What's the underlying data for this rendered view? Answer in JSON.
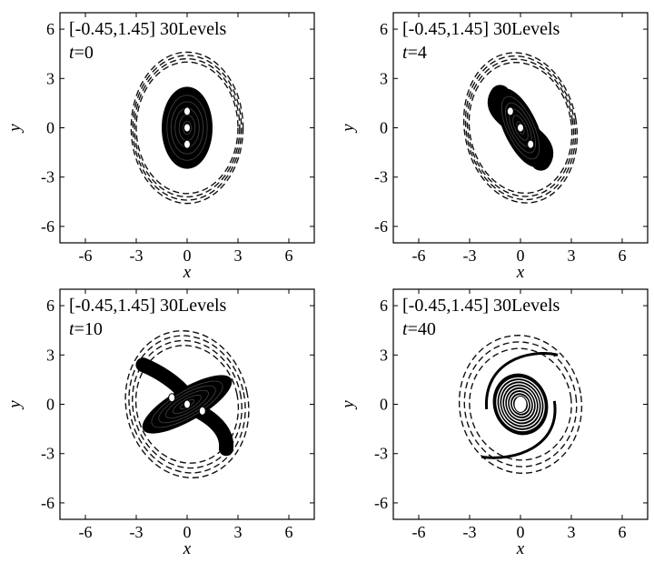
{
  "chart_data": [
    {
      "type": "contour",
      "title": "",
      "xlabel": "x",
      "ylabel": "y",
      "xlim": [
        -7.5,
        7.5
      ],
      "ylim": [
        -7,
        7
      ],
      "xticks": [
        -6,
        -3,
        0,
        3,
        6
      ],
      "yticks": [
        -6,
        -3,
        0,
        3,
        6
      ],
      "xtick_labels": [
        "-6",
        "-3",
        "0",
        "3",
        "6"
      ],
      "ytick_labels": [
        "-6",
        "-3",
        "0",
        "3",
        "6"
      ],
      "annotation_range": "[-0.45,1.45] 30Levels",
      "time_var": "t",
      "time_value": "=0",
      "t": 0,
      "contour_range": [
        -0.45,
        1.45
      ],
      "levels": 30,
      "dashed_rings": [
        [
          3.0,
          4.0
        ],
        [
          3.1,
          4.2
        ],
        [
          3.2,
          4.4
        ],
        [
          3.3,
          4.6
        ]
      ],
      "core": {
        "cx": 0,
        "cy": 0,
        "rx": 1.5,
        "ry": 2.5,
        "angle": 0
      },
      "core_centers": [
        [
          0,
          1.0
        ],
        [
          0,
          0
        ],
        [
          0,
          -1.0
        ]
      ],
      "arms": "none"
    },
    {
      "type": "contour",
      "title": "",
      "xlabel": "x",
      "ylabel": "y",
      "xlim": [
        -7.5,
        7.5
      ],
      "ylim": [
        -7,
        7
      ],
      "xticks": [
        -6,
        -3,
        0,
        3,
        6
      ],
      "yticks": [
        -6,
        -3,
        0,
        3,
        6
      ],
      "xtick_labels": [
        "-6",
        "-3",
        "0",
        "3",
        "6"
      ],
      "ytick_labels": [
        "-6",
        "-3",
        "0",
        "3",
        "6"
      ],
      "annotation_range": "[-0.45,1.45] 30Levels",
      "time_var": "t",
      "time_value": "=4",
      "t": 4,
      "contour_range": [
        -0.45,
        1.45
      ],
      "levels": 30,
      "dashed_rings": [
        [
          3.0,
          4.0
        ],
        [
          3.1,
          4.2
        ],
        [
          3.2,
          4.4
        ],
        [
          3.3,
          4.6
        ]
      ],
      "core": {
        "cx": 0,
        "cy": 0,
        "rx": 1.0,
        "ry": 2.6,
        "angle": -25
      },
      "core_centers": [
        [
          -0.6,
          1.0
        ],
        [
          0,
          0
        ],
        [
          0.6,
          -1.0
        ]
      ],
      "arms": "s-small"
    },
    {
      "type": "contour",
      "title": "",
      "xlabel": "x",
      "ylabel": "y",
      "xlim": [
        -7.5,
        7.5
      ],
      "ylim": [
        -7,
        7
      ],
      "xticks": [
        -6,
        -3,
        0,
        3,
        6
      ],
      "yticks": [
        -6,
        -3,
        0,
        3,
        6
      ],
      "xtick_labels": [
        "-6",
        "-3",
        "0",
        "3",
        "6"
      ],
      "ytick_labels": [
        "-6",
        "-3",
        "0",
        "3",
        "6"
      ],
      "annotation_range": "[-0.45,1.45] 30Levels",
      "time_var": "t",
      "time_value": "=10",
      "t": 10,
      "contour_range": [
        -0.45,
        1.45
      ],
      "levels": 30,
      "dashed_rings": [
        [
          3.0,
          3.6
        ],
        [
          3.2,
          3.9
        ],
        [
          3.4,
          4.2
        ],
        [
          3.6,
          4.5
        ]
      ],
      "core": {
        "cx": 0,
        "cy": 0,
        "rx": 3.0,
        "ry": 1.0,
        "angle": -30
      },
      "core_centers": [
        [
          -0.9,
          0.4
        ],
        [
          0,
          0
        ],
        [
          0.9,
          -0.4
        ]
      ],
      "arms": "s-large"
    },
    {
      "type": "contour",
      "title": "",
      "xlabel": "x",
      "ylabel": "y",
      "xlim": [
        -7.5,
        7.5
      ],
      "ylim": [
        -7,
        7
      ],
      "xticks": [
        -6,
        -3,
        0,
        3,
        6
      ],
      "yticks": [
        -6,
        -3,
        0,
        3,
        6
      ],
      "xtick_labels": [
        "-6",
        "-3",
        "0",
        "3",
        "6"
      ],
      "ytick_labels": [
        "-6",
        "-3",
        "0",
        "3",
        "6"
      ],
      "annotation_range": "[-0.45,1.45] 30Levels",
      "time_var": "t",
      "time_value": "=40",
      "t": 40,
      "contour_range": [
        -0.45,
        1.45
      ],
      "levels": 30,
      "dashed_rings": [
        [
          3.0,
          3.4
        ],
        [
          3.3,
          3.8
        ],
        [
          3.6,
          4.2
        ]
      ],
      "core": {
        "cx": 0,
        "cy": 0,
        "rx": 1.6,
        "ry": 1.9,
        "angle": -20
      },
      "core_centers": [
        [
          0,
          0
        ]
      ],
      "arms": "spiral"
    }
  ]
}
